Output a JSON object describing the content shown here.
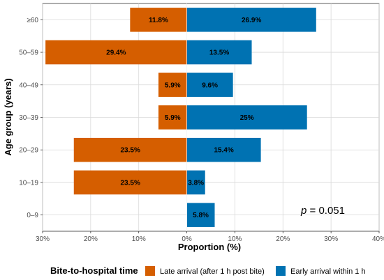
{
  "chart_data": {
    "type": "bar",
    "orientation": "horizontal-diverging",
    "title": "",
    "xlabel": "Proportion (%)",
    "ylabel": "Age group (years)",
    "categories": [
      "≥60",
      "50–59",
      "40–49",
      "30–39",
      "20–29",
      "10–19",
      "0–9"
    ],
    "series": [
      {
        "name": "Late arrival (after 1 h post bite)",
        "color": "#d55e00",
        "direction": "left",
        "values": [
          11.8,
          29.4,
          5.9,
          5.9,
          23.5,
          23.5,
          null
        ],
        "labels": [
          "11.8%",
          "29.4%",
          "5.9%",
          "5.9%",
          "23.5%",
          "23.5%",
          ""
        ]
      },
      {
        "name": "Early arrival within 1 h",
        "color": "#0072b2",
        "direction": "right",
        "values": [
          26.9,
          13.5,
          9.6,
          25,
          15.4,
          3.8,
          5.8
        ],
        "labels": [
          "26.9%",
          "13.5%",
          "9.6%",
          "25%",
          "15.4%",
          "3.8%",
          "5.8%"
        ]
      }
    ],
    "xlim": [
      -30,
      40
    ],
    "xticks": [
      -30,
      -20,
      -10,
      0,
      10,
      20,
      30,
      40
    ],
    "xtick_labels": [
      "30%",
      "20%",
      "10%",
      "0%",
      "10%",
      "20%",
      "30%",
      "40%"
    ],
    "grid": true,
    "annotation_prefix": "p",
    "annotation_value": " = 0.051",
    "legend": {
      "title": "Bite-to-hospital time",
      "position": "bottom"
    }
  }
}
